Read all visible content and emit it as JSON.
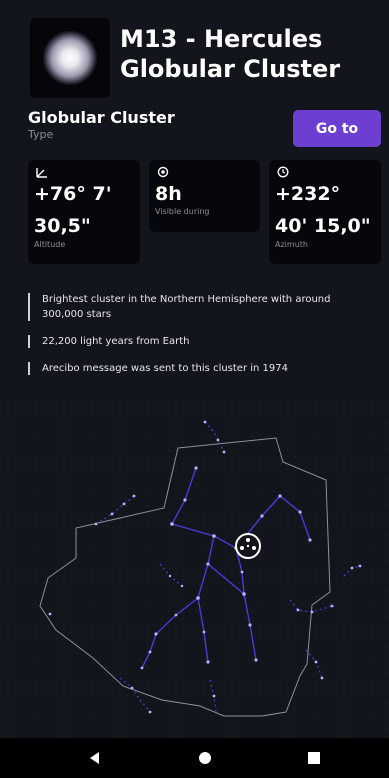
{
  "header": {
    "title": "M13 - Hercules Globular Cluster",
    "thumbnail_icon": "globular-cluster-thumbnail"
  },
  "type": {
    "value": "Globular Cluster",
    "label": "Type"
  },
  "goto_button": {
    "label": "Go to"
  },
  "stats": {
    "altitude": {
      "line1": "+76° 7'",
      "line2": "30,5\"",
      "label": "Altitude",
      "icon": "altitude-angle-icon"
    },
    "visible": {
      "value": "8h",
      "label": "Visible during",
      "icon": "sun-icon"
    },
    "azimuth": {
      "line1": "+232°",
      "line2": "40' 15,0\"",
      "label": "Azimuth",
      "icon": "compass-icon"
    }
  },
  "facts": [
    "Brightest cluster in the Northern Hemisphere with around 300,000 stars",
    "22,200 light years from Earth",
    "Arecibo message was sent to this cluster in 1974"
  ],
  "colors": {
    "background": "#13151c",
    "card": "#06070a",
    "accent": "#6c3fd1",
    "constellation_line": "#4a3ad6",
    "boundary": "#8e8f9c"
  },
  "navbar": {
    "back_icon": "triangle-back-icon",
    "home_icon": "circle-home-icon",
    "recents_icon": "square-recents-icon"
  }
}
